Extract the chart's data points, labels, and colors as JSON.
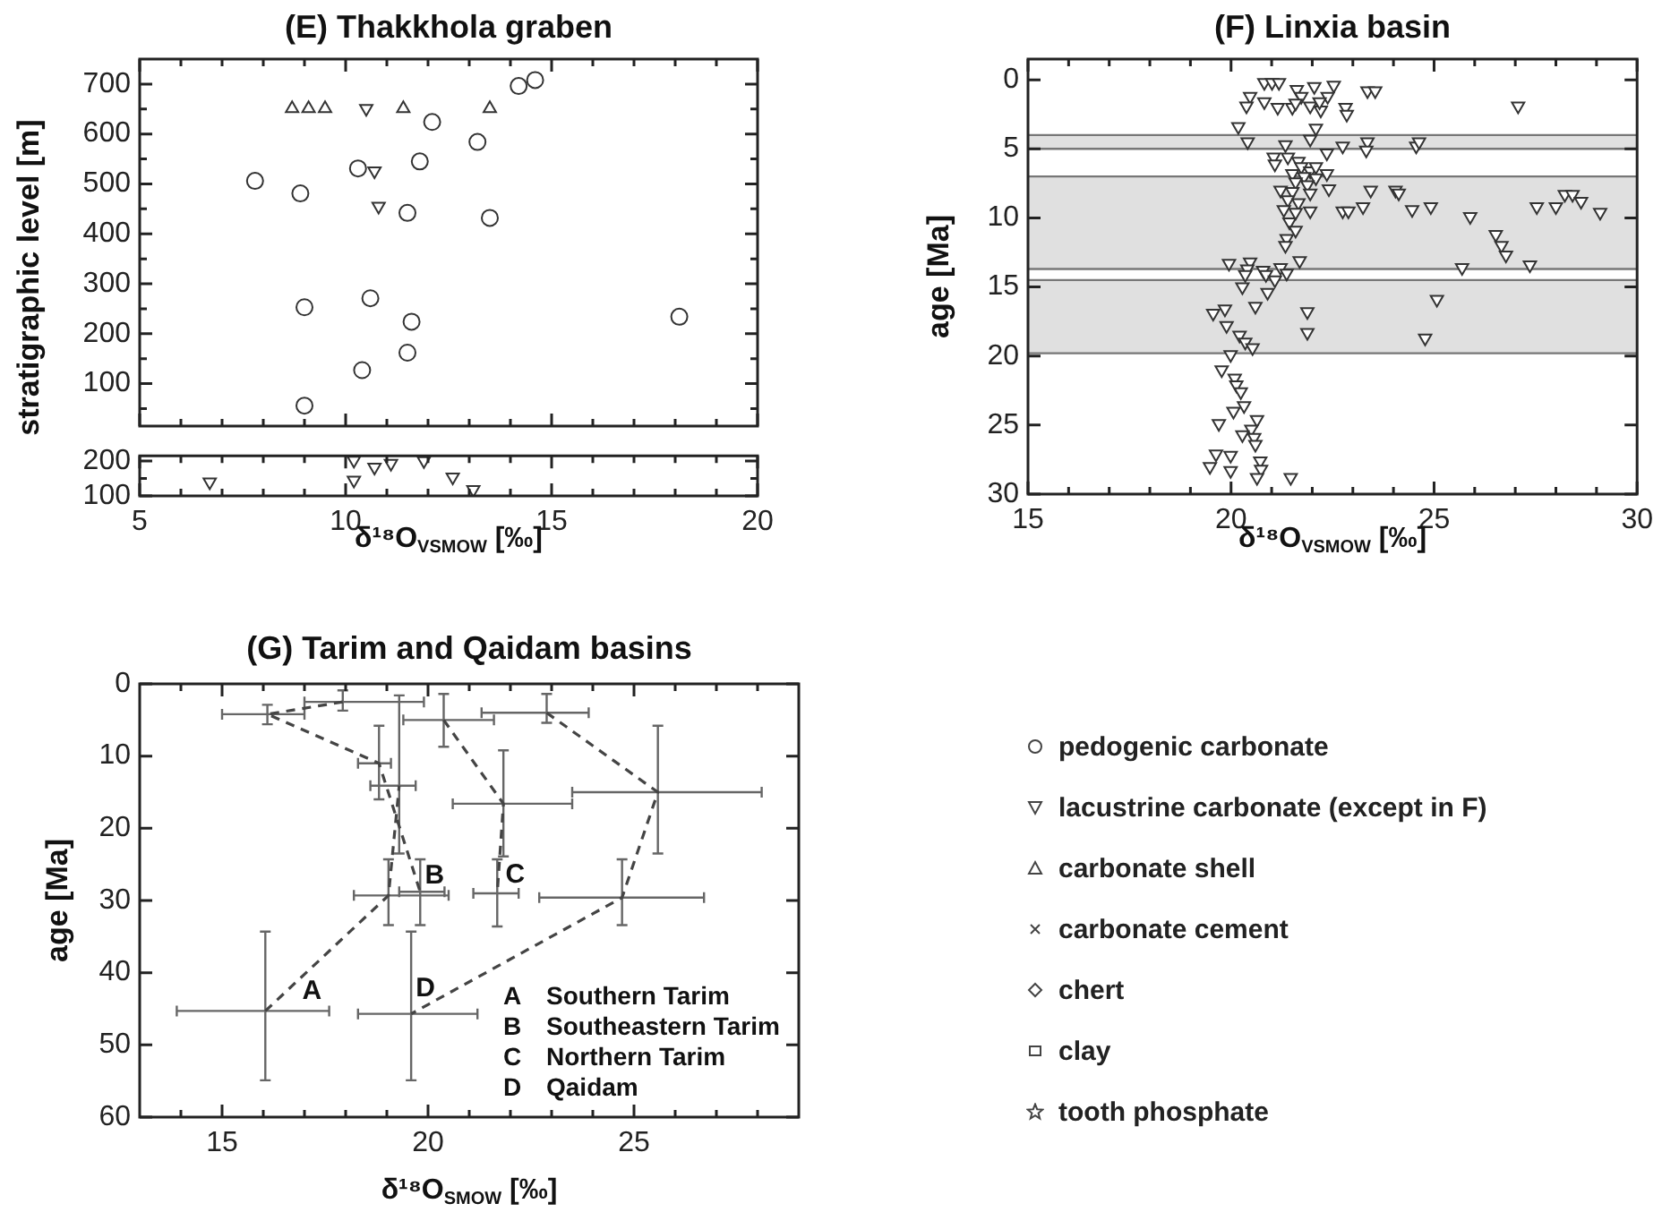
{
  "chart_data": [
    {
      "type": "scatter",
      "title": "(E) Thakkhola graben",
      "ylabel": "stratigraphic level [m]",
      "xlim": [
        5,
        20
      ],
      "ylim": [
        15,
        750
      ],
      "tick_labels": "y",
      "xticks": [
        5,
        {
          "value": 6,
          "label": null
        },
        {
          "value": 7,
          "label": null
        },
        {
          "value": 8,
          "label": null
        },
        {
          "value": 9,
          "label": null
        },
        10,
        {
          "value": 11,
          "label": null
        },
        {
          "value": 12,
          "label": null
        },
        {
          "value": 13,
          "label": null
        },
        {
          "value": 14,
          "label": null
        },
        15,
        {
          "value": 16,
          "label": null
        },
        {
          "value": 17,
          "label": null
        },
        {
          "value": 18,
          "label": null
        },
        {
          "value": 19,
          "label": null
        },
        20
      ],
      "yticks": [
        {
          "value": 50,
          "label": null
        },
        100,
        {
          "value": 150,
          "label": null
        },
        200,
        {
          "value": 250,
          "label": null
        },
        300,
        {
          "value": 350,
          "label": null
        },
        400,
        {
          "value": 450,
          "label": null
        },
        500,
        {
          "value": 550,
          "label": null
        },
        600,
        {
          "value": 650,
          "label": null
        },
        700
      ],
      "series": [
        {
          "marker": "circle",
          "color": "#333333",
          "x": [
            7.8,
            8.9,
            9.0,
            9.0,
            10.3,
            11.8,
            10.6,
            10.4,
            11.5,
            11.6,
            11.5,
            12.1,
            13.2,
            13.5,
            14.2,
            14.6,
            18.1
          ],
          "values": [
            506,
            481,
            253,
            56,
            531,
            545,
            271,
            127,
            442,
            224,
            162,
            624,
            584,
            432,
            696,
            708,
            234
          ]
        },
        {
          "marker": "triangle",
          "color": "#333333",
          "x": [
            8.7,
            9.1,
            9.5,
            11.4,
            13.5
          ],
          "values": [
            651,
            651,
            651,
            651,
            651
          ]
        },
        {
          "marker": "triangle-down",
          "color": "#333333",
          "x": [
            10.5,
            10.7,
            10.8
          ],
          "values": [
            651,
            526,
            455
          ]
        }
      ]
    },
    {
      "type": "scatter",
      "xlabel": "δ¹⁸O$_{VSMOW}$ [‰]",
      "xlim": [
        5,
        20
      ],
      "ylim": [
        100,
        215
      ],
      "xticks": [
        5,
        {
          "value": 6,
          "label": null
        },
        {
          "value": 7,
          "label": null
        },
        {
          "value": 8,
          "label": null
        },
        {
          "value": 9,
          "label": null
        },
        10,
        {
          "value": 11,
          "label": null
        },
        {
          "value": 12,
          "label": null
        },
        {
          "value": 13,
          "label": null
        },
        {
          "value": 14,
          "label": null
        },
        15,
        {
          "value": 16,
          "label": null
        },
        {
          "value": 17,
          "label": null
        },
        {
          "value": 18,
          "label": null
        },
        {
          "value": 19,
          "label": null
        },
        20
      ],
      "yticks": [
        100,
        {
          "value": 150,
          "label": null
        },
        200
      ],
      "series": [
        {
          "marker": "triangle-down",
          "color": "#333333",
          "x": [
            6.7,
            10.2,
            10.2,
            10.7,
            11.1,
            11.9,
            12.6,
            13.1
          ],
          "values": [
            140,
            202,
            145,
            182,
            193,
            201,
            154,
            118
          ]
        }
      ]
    },
    {
      "type": "scatter",
      "title": "(F) Linxia basin",
      "xlabel": "δ¹⁸O$_{VSMOW}$ [‰]",
      "ylabel": "age [Ma]",
      "xlim": [
        15,
        30
      ],
      "ylim": [
        30,
        -1.5
      ],
      "xticks": [
        15,
        {
          "value": 16,
          "label": null
        },
        {
          "value": 17,
          "label": null
        },
        {
          "value": 18,
          "label": null
        },
        {
          "value": 19,
          "label": null
        },
        20,
        {
          "value": 21,
          "label": null
        },
        {
          "value": 22,
          "label": null
        },
        {
          "value": 23,
          "label": null
        },
        {
          "value": 24,
          "label": null
        },
        25,
        {
          "value": 26,
          "label": null
        },
        {
          "value": 27,
          "label": null
        },
        {
          "value": 28,
          "label": null
        },
        {
          "value": 29,
          "label": null
        },
        30
      ],
      "yticks": [
        0,
        5,
        10,
        15,
        20,
        25,
        30
      ],
      "bands": [
        {
          "axis": "y",
          "from": 4,
          "to": 5,
          "color": "#e0e0e0"
        },
        {
          "axis": "y",
          "from": 7,
          "to": 13.7,
          "color": "#e0e0e0"
        },
        {
          "axis": "y",
          "from": 14.5,
          "to": 19.8,
          "color": "#e0e0e0"
        }
      ],
      "series": [
        {
          "marker": "triangle-down",
          "color": "#333333",
          "x": [
            20.82,
            21.01,
            21.18,
            22.05,
            22.53,
            20.47,
            21.62,
            21.73,
            22.38,
            23.36,
            23.55,
            20.38,
            20.82,
            21.15,
            21.51,
            21.59,
            21.95,
            22.21,
            22.18,
            22.82,
            22.85,
            27.07,
            20.18,
            20.41,
            22.09,
            21.95,
            21.34,
            22.75,
            22.36,
            23.36,
            23.33,
            24.56,
            24.63,
            21.05,
            21.08,
            21.4,
            21.66,
            21.73,
            21.95,
            22.09,
            21.51,
            21.8,
            22.09,
            22.36,
            21.59,
            21.88,
            21.22,
            21.51,
            21.95,
            22.41,
            23.44,
            24.05,
            24.13,
            21.4,
            21.66,
            21.3,
            21.59,
            21.95,
            22.75,
            22.89,
            23.25,
            24.46,
            24.92,
            25.89,
            27.53,
            28.0,
            28.22,
            28.41,
            28.62,
            29.09,
            21.44,
            21.59,
            21.37,
            21.34,
            26.52,
            26.66,
            26.77,
            27.36,
            19.95,
            20.47,
            20.4,
            20.35,
            20.79,
            20.86,
            21.22,
            21.37,
            21.08,
            20.9,
            21.69,
            20.28,
            25.69,
            25.07,
            19.56,
            19.85,
            20.6,
            21.88,
            19.89,
            20.21,
            21.88,
            20.35,
            20.53,
            24.78,
            19.99,
            19.77,
            20.09,
            20.13,
            20.24,
            20.32,
            20.06,
            20.64,
            19.7,
            20.5,
            20.57,
            20.6,
            20.28,
            19.63,
            19.99,
            20.72,
            19.48,
            19.99,
            20.74,
            20.64,
            21.47
          ],
          "values": [
            0.2,
            0.2,
            0.2,
            0.5,
            0.4,
            1.2,
            0.7,
            1.2,
            1.2,
            0.8,
            0.8,
            1.9,
            1.6,
            2.0,
            2.0,
            1.7,
            1.9,
            2.2,
            1.6,
            2.0,
            2.5,
            1.9,
            3.4,
            4.5,
            3.5,
            4.3,
            4.7,
            4.8,
            5.3,
            4.5,
            5.1,
            4.8,
            4.5,
            5.6,
            6.1,
            5.6,
            5.9,
            6.3,
            6.6,
            6.3,
            6.8,
            7.0,
            7.1,
            6.8,
            7.4,
            7.6,
            8.0,
            8.1,
            8.2,
            7.9,
            8.0,
            8.0,
            8.2,
            8.7,
            8.9,
            9.4,
            9.6,
            9.5,
            9.5,
            9.5,
            9.2,
            9.4,
            9.2,
            9.9,
            9.2,
            9.2,
            8.3,
            8.3,
            8.8,
            9.6,
            10.3,
            10.9,
            11.5,
            12.0,
            11.2,
            12.0,
            12.7,
            13.4,
            13.3,
            13.2,
            13.7,
            14.1,
            13.8,
            14.1,
            13.6,
            14.0,
            14.5,
            15.4,
            13.1,
            15.0,
            13.6,
            15.9,
            16.9,
            16.6,
            16.4,
            16.8,
            17.8,
            18.5,
            18.3,
            19.0,
            19.4,
            18.7,
            19.9,
            21.0,
            21.6,
            22.1,
            22.6,
            23.6,
            24.0,
            24.6,
            24.9,
            25.3,
            25.9,
            26.4,
            25.7,
            27.1,
            27.2,
            27.6,
            28.0,
            28.3,
            28.2,
            28.8,
            28.8
          ]
        }
      ]
    },
    {
      "type": "line",
      "title": "(G) Tarim and Qaidam basins",
      "xlabel": "δ¹⁸O$_{SMOW}$ [‰]",
      "ylabel": "age [Ma]",
      "xlim": [
        13,
        29
      ],
      "ylim": [
        60,
        0
      ],
      "marker": "none",
      "line_style": "dashed",
      "xticks": [
        {
          "value": 14,
          "label": null
        },
        15,
        {
          "value": 16,
          "label": null
        },
        {
          "value": 17,
          "label": null
        },
        {
          "value": 18,
          "label": null
        },
        {
          "value": 19,
          "label": null
        },
        20,
        {
          "value": 21,
          "label": null
        },
        {
          "value": 22,
          "label": null
        },
        {
          "value": 23,
          "label": null
        },
        {
          "value": 24,
          "label": null
        },
        25,
        {
          "value": 26,
          "label": null
        },
        {
          "value": 27,
          "label": null
        },
        {
          "value": 28,
          "label": null
        }
      ],
      "yticks": [
        0,
        10,
        20,
        30,
        40,
        50,
        60
      ],
      "annotations": [
        "A Southern Tarim",
        "B Southeastern Tarim",
        "C Northern Tarim",
        "D Qaidam"
      ],
      "series": [
        {
          "name": "A",
          "color": "#444444",
          "x": [
            16.05,
            19.04,
            19.3
          ],
          "values": [
            45.3,
            29.3,
            14.1
          ],
          "xerrors": [
            [
              13.9,
              17.6
            ],
            [
              18.2,
              20.5
            ],
            [
              18.6,
              19.7
            ]
          ],
          "errors": [
            [
              34.3,
              54.9
            ],
            [
              24.3,
              33.4
            ],
            [
              1.6,
              23.5
            ]
          ]
        },
        {
          "name": "B",
          "color": "#444444",
          "x": [
            17.93,
            16.1,
            18.81,
            19.81
          ],
          "values": [
            2.5,
            4.2,
            11.0,
            28.8
          ],
          "xerrors": [
            [
              17.0,
              19.9
            ],
            [
              15.0,
              17.0
            ],
            [
              18.3,
              19.1
            ],
            [
              19.3,
              20.4
            ]
          ],
          "errors": [
            [
              0.9,
              3.7
            ],
            [
              2.9,
              5.6
            ],
            [
              5.8,
              16.0
            ],
            [
              24.3,
              33.4
            ]
          ]
        },
        {
          "name": "C",
          "color": "#444444",
          "x": [
            20.38,
            21.83,
            21.68
          ],
          "values": [
            5.0,
            16.6,
            29.0
          ],
          "xerrors": [
            [
              19.4,
              21.6
            ],
            [
              20.6,
              23.5
            ],
            [
              21.1,
              22.2
            ]
          ],
          "errors": [
            [
              1.4,
              8.7
            ],
            [
              9.2,
              23.9
            ],
            [
              24.3,
              33.6
            ]
          ]
        },
        {
          "name": "D",
          "color": "#444444",
          "x": [
            22.88,
            25.58,
            24.71,
            19.59
          ],
          "values": [
            4.0,
            15.0,
            29.6,
            45.7
          ],
          "xerrors": [
            [
              21.3,
              23.9
            ],
            [
              23.5,
              28.1
            ],
            [
              22.7,
              26.7
            ],
            [
              18.3,
              21.2
            ]
          ],
          "errors": [
            [
              1.4,
              5.4
            ],
            [
              5.8,
              23.5
            ],
            [
              24.3,
              33.4
            ],
            [
              34.3,
              54.9
            ]
          ]
        }
      ]
    },
    {
      "type": "other",
      "annotations": [
        "pedogenic carbonate",
        "lacustrine carbonate (except in F)",
        "carbonate shell",
        "carbonate cement",
        "chert",
        "clay",
        "tooth phosphate"
      ]
    }
  ]
}
